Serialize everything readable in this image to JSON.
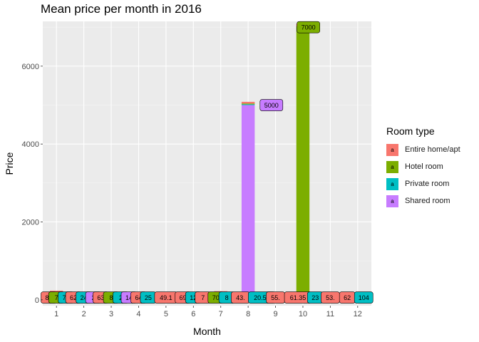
{
  "chart_data": {
    "type": "bar",
    "title": "Mean price per month in 2016",
    "xlabel": "Month",
    "ylabel": "Price",
    "categories": [
      "1",
      "2",
      "3",
      "4",
      "5",
      "6",
      "7",
      "8",
      "9",
      "10",
      "11",
      "12"
    ],
    "y_ticks": [
      "0",
      "2000",
      "4000",
      "6000"
    ],
    "ylim": [
      -150,
      7150
    ],
    "grid": true,
    "legend_title": "Room type",
    "legend_position": "right",
    "series": [
      {
        "name": "Entire home/apt",
        "color": "#F8766D",
        "values": [
          81,
          62,
          63,
          64,
          49,
          69,
          71,
          43,
          55,
          61.35,
          53,
          62
        ]
      },
      {
        "name": "Hotel room",
        "color": "#7CAE00",
        "values": [
          77,
          null,
          81,
          null,
          null,
          null,
          70,
          20.58,
          null,
          7000,
          null,
          null
        ]
      },
      {
        "name": "Private room",
        "color": "#00BFC4",
        "values": [
          77,
          24,
          24,
          25,
          49,
          12,
          81,
          20.58,
          55,
          23,
          53,
          104
        ]
      },
      {
        "name": "Shared room",
        "color": "#C77CFF",
        "values": [
          null,
          24,
          null,
          14,
          null,
          12,
          null,
          5000,
          null,
          null,
          null,
          null
        ]
      }
    ],
    "labels": [
      {
        "text": "81",
        "month": 0.72,
        "series": 0
      },
      {
        "text": "7",
        "month": 1.0,
        "series": 1
      },
      {
        "text": "77",
        "month": 1.35,
        "series": 2
      },
      {
        "text": "62",
        "month": 1.62,
        "series": 0
      },
      {
        "text": "24",
        "month": 2.0,
        "series": 2
      },
      {
        "text": "2",
        "month": 2.35,
        "series": 3
      },
      {
        "text": "63",
        "month": 2.62,
        "series": 0
      },
      {
        "text": "8",
        "month": 3.0,
        "series": 1
      },
      {
        "text": "2",
        "month": 3.35,
        "series": 2
      },
      {
        "text": "14",
        "month": 3.65,
        "series": 3
      },
      {
        "text": "64",
        "month": 4.0,
        "series": 0
      },
      {
        "text": "25",
        "month": 4.35,
        "series": 2
      },
      {
        "text": "49.1",
        "month": 5.0,
        "series": 0
      },
      {
        "text": "69",
        "month": 5.62,
        "series": 0
      },
      {
        "text": "12",
        "month": 6.0,
        "series": 2
      },
      {
        "text": "7",
        "month": 6.35,
        "series": 0
      },
      {
        "text": "70",
        "month": 6.82,
        "series": 1
      },
      {
        "text": "8",
        "month": 7.22,
        "series": 2
      },
      {
        "text": "43.",
        "month": 7.72,
        "series": 0
      },
      {
        "text": "20.58",
        "month": 8.5,
        "series": 2
      },
      {
        "text": "55.",
        "month": 9.0,
        "series": 0
      },
      {
        "text": "61.35",
        "month": 9.82,
        "series": 0
      },
      {
        "text": "23",
        "month": 10.45,
        "series": 2
      },
      {
        "text": "53.",
        "month": 11.0,
        "series": 0
      },
      {
        "text": "62",
        "month": 11.62,
        "series": 0
      },
      {
        "text": "104",
        "month": 12.22,
        "series": 2
      },
      {
        "text": "5000",
        "month": 8.85,
        "value": 5000,
        "series": 3
      },
      {
        "text": "7000",
        "month": 10.2,
        "value": 7000,
        "series": 1
      }
    ]
  }
}
